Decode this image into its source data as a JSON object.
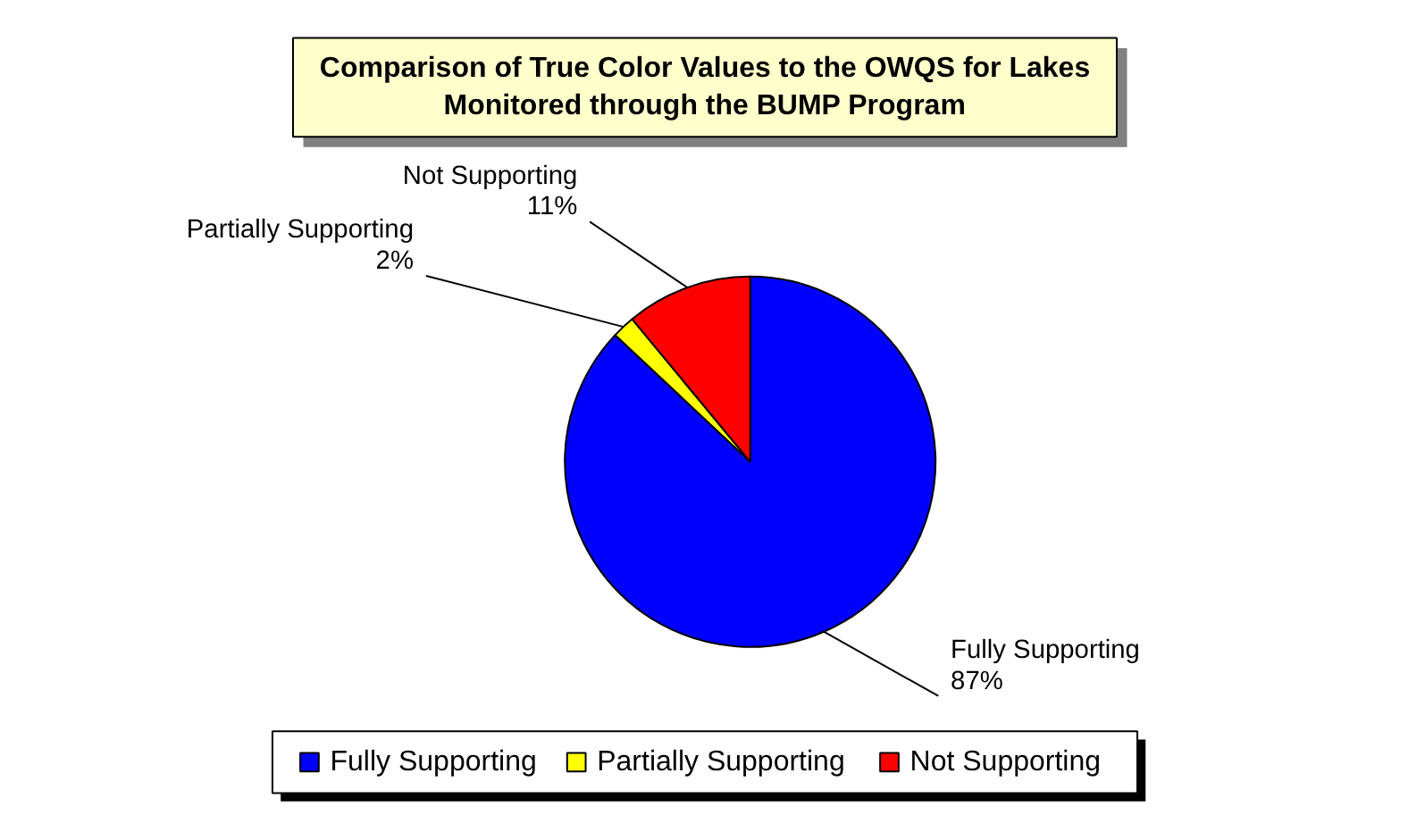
{
  "chart_data": {
    "type": "pie",
    "title": "Comparison of True Color Values to the OWQS for Lakes Monitored through the BUMP Program",
    "categories": [
      "Fully Supporting",
      "Partially Supporting",
      "Not Supporting"
    ],
    "values": [
      87,
      2,
      11
    ],
    "colors": [
      "#0000ff",
      "#ffff00",
      "#ff0000"
    ],
    "value_labels": [
      "87%",
      "2%",
      "11%"
    ],
    "legend": "bottom"
  }
}
